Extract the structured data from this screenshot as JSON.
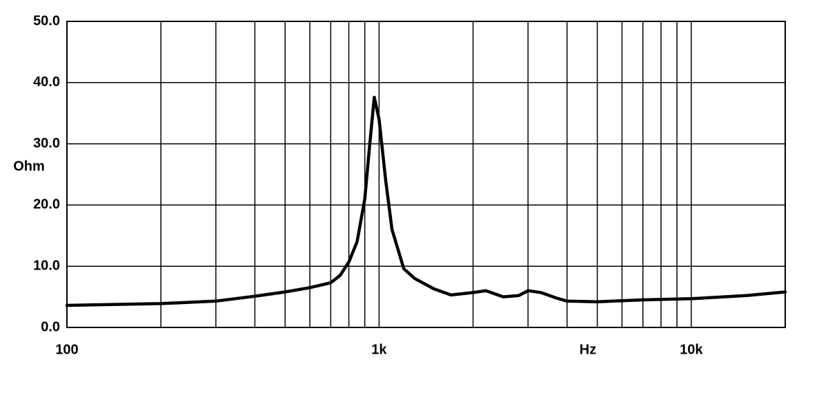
{
  "chart_data": {
    "type": "line",
    "y_label": "Ohm",
    "x_label": "Hz",
    "x": [
      100,
      200,
      300,
      400,
      500,
      600,
      700,
      750,
      800,
      850,
      900,
      930,
      965,
      1000,
      1050,
      1100,
      1200,
      1300,
      1500,
      1700,
      2000,
      2200,
      2500,
      2800,
      3000,
      3300,
      3700,
      4000,
      5000,
      7000,
      10000,
      15000,
      20000
    ],
    "values": [
      3.6,
      3.9,
      4.3,
      5.1,
      5.8,
      6.5,
      7.3,
      8.5,
      10.7,
      14,
      21,
      29,
      37.6,
      34,
      24,
      16,
      9.6,
      8,
      6.3,
      5.3,
      5.7,
      6.0,
      5.0,
      5.2,
      6.0,
      5.7,
      4.8,
      4.3,
      4.2,
      4.5,
      4.7,
      5.2,
      5.8
    ],
    "color": "#000000",
    "log_x": true,
    "xlim": [
      100,
      20000
    ],
    "xticks": [
      {
        "value": 100,
        "label": "100"
      },
      {
        "value": 1000,
        "label": "1k"
      },
      {
        "value": 10000,
        "label": "10k"
      }
    ],
    "xminor": [
      200,
      300,
      400,
      500,
      600,
      700,
      800,
      900,
      2000,
      3000,
      4000,
      5000,
      6000,
      7000,
      8000,
      9000
    ],
    "ylim": [
      0,
      50
    ],
    "yticks": [
      {
        "value": 0,
        "label": "0.0"
      },
      {
        "value": 10,
        "label": "10.0"
      },
      {
        "value": 20,
        "label": "20.0"
      },
      {
        "value": 30,
        "label": "30.0"
      },
      {
        "value": 40,
        "label": "40.0"
      },
      {
        "value": 50,
        "label": "50.0"
      }
    ],
    "grid": true
  }
}
